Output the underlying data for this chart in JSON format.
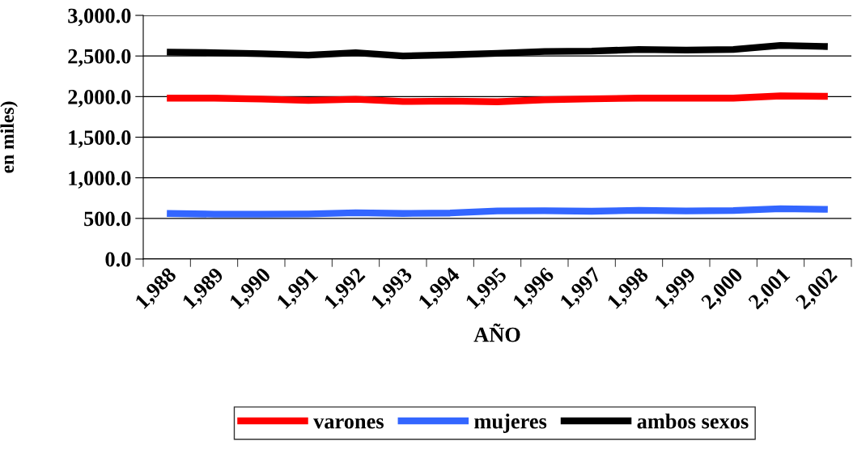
{
  "chart_data": {
    "type": "line",
    "xlabel": "AÑO",
    "ylabel": "en miles)",
    "categories": [
      "1,988",
      "1,989",
      "1,990",
      "1,991",
      "1,992",
      "1,993",
      "1,994",
      "1,995",
      "1,996",
      "1,997",
      "1,998",
      "1,999",
      "2,000",
      "2,001",
      "2,002"
    ],
    "series": [
      {
        "name": "varones",
        "color": "#ff0000",
        "values": [
          1981,
          1981,
          1970,
          1953,
          1967,
          1939,
          1945,
          1936,
          1961,
          1973,
          1981,
          1981,
          1981,
          2008,
          2003
        ]
      },
      {
        "name": "mujeres",
        "color": "#3366ff",
        "values": [
          561,
          552,
          552,
          555,
          569,
          561,
          566,
          591,
          594,
          588,
          600,
          591,
          597,
          619,
          611
        ]
      },
      {
        "name": "ambos sexos",
        "color": "#000000",
        "values": [
          2547,
          2541,
          2528,
          2511,
          2541,
          2500,
          2514,
          2533,
          2555,
          2560,
          2580,
          2572,
          2580,
          2630,
          2616
        ]
      }
    ],
    "ylim": [
      0,
      3000
    ],
    "yticks": [
      {
        "value": 0,
        "label": "0.0"
      },
      {
        "value": 500,
        "label": "500.0"
      },
      {
        "value": 1000,
        "label": "1,000.0"
      },
      {
        "value": 1500,
        "label": "1,500.0"
      },
      {
        "value": 2000,
        "label": "2,000.0"
      },
      {
        "value": 2500,
        "label": "2,500.0"
      },
      {
        "value": 3000,
        "label": "3,000.0"
      }
    ],
    "grid": "y",
    "legend": "bottom",
    "marker": "none",
    "line_style": "solid"
  }
}
